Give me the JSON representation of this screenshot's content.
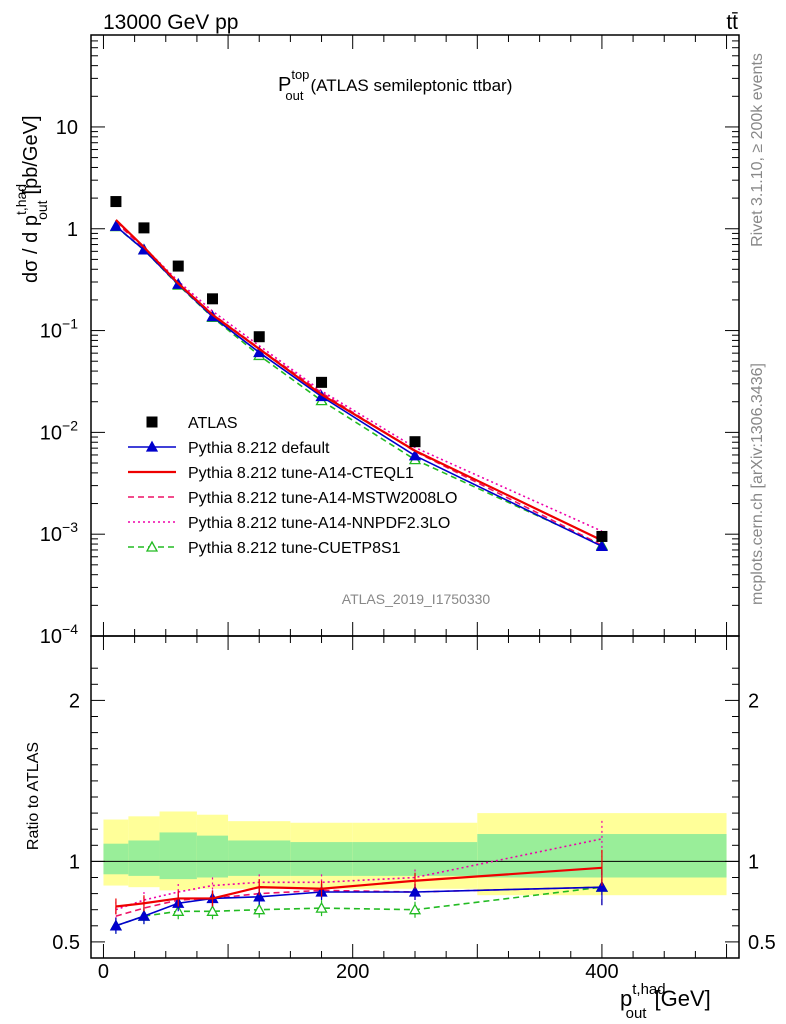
{
  "header": {
    "energy_label": "13000 GeV pp",
    "process_label": "tt̄"
  },
  "side_labels": {
    "rivet": "Rivet 3.1.10, ≥ 200k events",
    "mcplots": "mcplots.cern.ch [arXiv:1306.3436]"
  },
  "chart_data": [
    {
      "type": "line",
      "panel": "main",
      "title_base": "P",
      "title_sub": "out",
      "title_sup": "top",
      "title_rest": "(ATLAS semileptonic ttbar)",
      "ylabel": "dσ / d p_out^t,had [pb/GeV]",
      "ylabel_text": "dσ / d p",
      "ylabel_sub": "out",
      "ylabel_sup": "t,had",
      "ylabel_unit": "[pb/GeV]",
      "yscale": "log",
      "ylim": [
        0.0001,
        80
      ],
      "xlim": [
        -10,
        510
      ],
      "y_ticks": [
        {
          "value": 10,
          "base": "10",
          "exp": ""
        },
        {
          "value": 1,
          "base": "1",
          "exp": ""
        },
        {
          "value": 0.1,
          "base": "10",
          "exp": "−1"
        },
        {
          "value": 0.01,
          "base": "10",
          "exp": "−2"
        },
        {
          "value": 0.001,
          "base": "10",
          "exp": "−3"
        },
        {
          "value": 0.0001,
          "base": "10",
          "exp": "−4"
        }
      ],
      "watermark": "ATLAS_2019_I1750330",
      "x": [
        10,
        32.5,
        60,
        87.5,
        125,
        175,
        250,
        400
      ],
      "data": {
        "name": "ATLAS",
        "values": [
          1.85,
          1.02,
          0.43,
          0.205,
          0.087,
          0.031,
          0.0081,
          0.00095
        ]
      },
      "series": [
        {
          "name": "Pythia 8.212 default",
          "color": "#0000cc",
          "style": "solid",
          "marker": "triangle-filled",
          "values": [
            1.06,
            0.62,
            0.285,
            0.137,
            0.061,
            0.0225,
            0.0059,
            0.00076
          ]
        },
        {
          "name": "Pythia 8.212 tune-A14-CTEQL1",
          "color": "#ee0000",
          "style": "solid",
          "marker": "none",
          "values": [
            1.22,
            0.66,
            0.29,
            0.143,
            0.066,
            0.0235,
            0.0066,
            0.00087
          ]
        },
        {
          "name": "Pythia 8.212 tune-A14-MSTW2008LO",
          "color": "#ee1166",
          "style": "dashed",
          "marker": "none",
          "values": [
            1.16,
            0.64,
            0.29,
            0.145,
            0.067,
            0.0245,
            0.0065,
            0.00078
          ]
        },
        {
          "name": "Pythia 8.212 tune-A14-NNPDF2.3LO",
          "color": "#ee00aa",
          "style": "dotted",
          "marker": "none",
          "values": [
            1.19,
            0.66,
            0.305,
            0.155,
            0.071,
            0.0255,
            0.0071,
            0.00107
          ]
        },
        {
          "name": "Pythia 8.212 tune-CUETP8S1",
          "color": "#22bb22",
          "style": "dashed",
          "marker": "triangle-open",
          "values": [
            1.05,
            0.62,
            0.28,
            0.135,
            0.057,
            0.0205,
            0.0054,
            0.00078
          ]
        }
      ]
    },
    {
      "type": "line",
      "panel": "ratio",
      "ylabel": "Ratio to ATLAS",
      "xlabel": "p_out^t,had [GeV]",
      "xlabel_text": "p",
      "xlabel_sub": "out",
      "xlabel_sup": "t,had",
      "xlabel_unit": "[GeV]",
      "ylim": [
        0.4,
        2.4
      ],
      "xlim": [
        -10,
        510
      ],
      "y_ticks": [
        {
          "value": 2,
          "label": "2"
        },
        {
          "value": 1,
          "label": "1"
        },
        {
          "value": 0.5,
          "label": "0.5"
        }
      ],
      "x_ticks": [
        {
          "value": 0,
          "label": "0"
        },
        {
          "value": 200,
          "label": "200"
        },
        {
          "value": 400,
          "label": "400"
        }
      ],
      "bands": {
        "bin_edges": [
          0,
          20,
          45,
          75,
          100,
          150,
          200,
          300,
          500
        ],
        "yellow_low": [
          0.85,
          0.84,
          0.82,
          0.83,
          0.83,
          0.83,
          0.83,
          0.79
        ],
        "yellow_high": [
          1.26,
          1.28,
          1.31,
          1.29,
          1.25,
          1.24,
          1.24,
          1.3
        ],
        "green_low": [
          0.92,
          0.91,
          0.89,
          0.9,
          0.91,
          0.91,
          0.91,
          0.9
        ],
        "green_high": [
          1.11,
          1.13,
          1.18,
          1.16,
          1.13,
          1.12,
          1.12,
          1.17
        ]
      },
      "x": [
        10,
        32.5,
        60,
        87.5,
        125,
        175,
        250,
        400
      ],
      "series": [
        {
          "name": "Pythia 8.212 default",
          "color": "#0000cc",
          "style": "solid",
          "marker": "triangle-filled",
          "values": [
            0.6,
            0.66,
            0.74,
            0.77,
            0.78,
            0.81,
            0.81,
            0.84
          ]
        },
        {
          "name": "Pythia 8.212 tune-A14-CTEQL1",
          "color": "#ee0000",
          "style": "solid",
          "marker": "none",
          "values": [
            0.72,
            0.74,
            0.77,
            0.77,
            0.84,
            0.83,
            0.88,
            0.96
          ]
        },
        {
          "name": "Pythia 8.212 tune-A14-MSTW2008LO",
          "color": "#ee1166",
          "style": "dashed",
          "marker": "none",
          "values": [
            0.66,
            0.71,
            0.76,
            0.77,
            0.8,
            0.82,
            0.81,
            0.84
          ]
        },
        {
          "name": "Pythia 8.212 tune-A14-NNPDF2.3LO",
          "color": "#ee00aa",
          "style": "dotted",
          "marker": "none",
          "values": [
            0.7,
            0.76,
            0.81,
            0.85,
            0.87,
            0.87,
            0.9,
            1.14
          ]
        },
        {
          "name": "Pythia 8.212 tune-CUETP8S1",
          "color": "#22bb22",
          "style": "dashed",
          "marker": "triangle-open",
          "values": [
            0.6,
            0.66,
            0.69,
            0.69,
            0.7,
            0.71,
            0.7,
            0.84
          ]
        }
      ]
    }
  ]
}
